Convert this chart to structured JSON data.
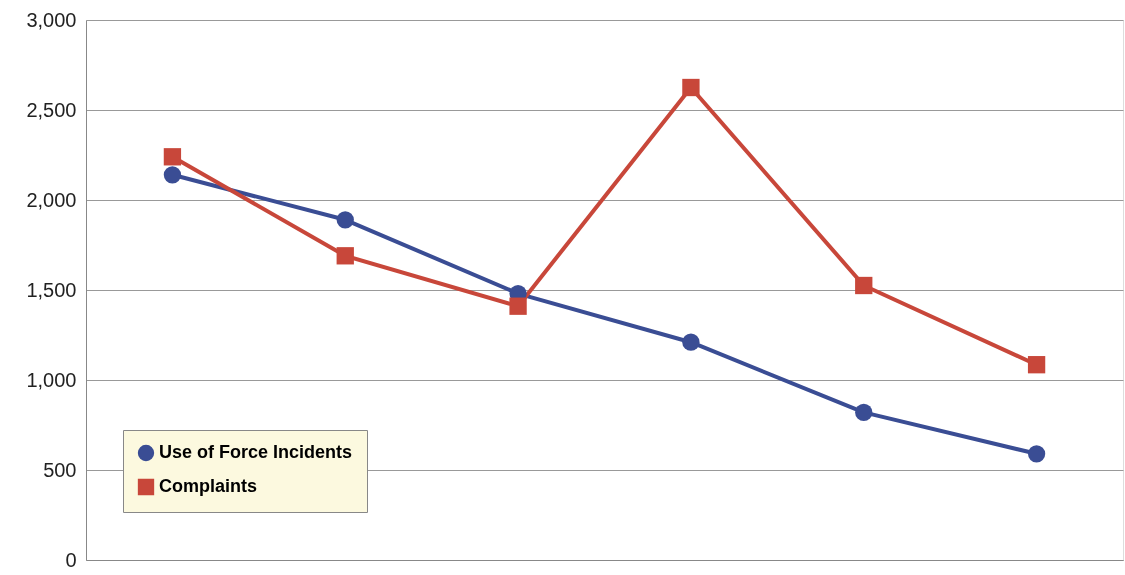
{
  "chart_data": {
    "type": "line",
    "categories": [
      null,
      null,
      null,
      null,
      null,
      null
    ],
    "series": [
      {
        "name": "Use of Force Incidents",
        "color": "#3a4d94",
        "marker": "circle",
        "values": [
          2140,
          1890,
          1480,
          1210,
          820,
          590
        ]
      },
      {
        "name": "Complaints",
        "color": "#c8473a",
        "marker": "square",
        "values": [
          2240,
          1690,
          1410,
          2625,
          1525,
          1085
        ]
      }
    ],
    "ylim": [
      0,
      3000
    ],
    "yticks": [
      0,
      {
        "value": 500,
        "label": "500"
      },
      {
        "value": 1000,
        "label": "1,000"
      },
      {
        "value": 1500,
        "label": "1,500"
      },
      {
        "value": 2000,
        "label": "2,000"
      },
      {
        "value": 2500,
        "label": "2,500"
      },
      {
        "value": 3000,
        "label": "3,000"
      }
    ],
    "line_style": "solid",
    "grid": "y",
    "legend": "bottom left",
    "tick_labels": "y"
  }
}
